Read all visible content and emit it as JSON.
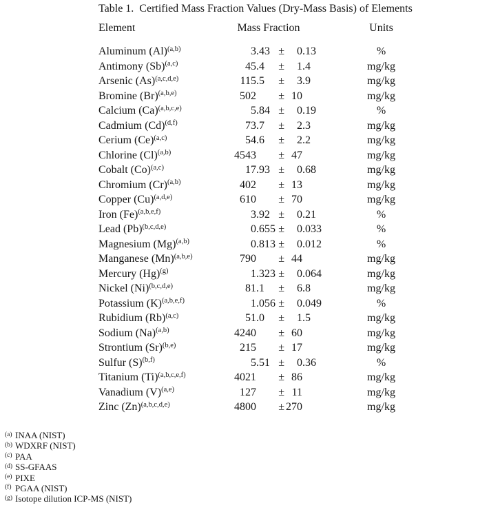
{
  "title": "Table 1.  Certified Mass Fraction Values (Dry-Mass Basis) of Elements",
  "table": {
    "header": {
      "element": "Element",
      "mass_fraction": "Mass Fraction",
      "units": "Units"
    },
    "plus_minus": "±",
    "rows": [
      {
        "element": "Aluminum (Al)",
        "footnote_marker": "(a,b)",
        "value": "3.43",
        "uncertainty": "0.13",
        "units": "%"
      },
      {
        "element": "Antimony (Sb)",
        "footnote_marker": "(a,c)",
        "value": "45.4",
        "uncertainty": "1.4",
        "units": "mg/kg"
      },
      {
        "element": "Arsenic (As)",
        "footnote_marker": "(a,c,d,e)",
        "value": "115.5",
        "uncertainty": "3.9",
        "units": "mg/kg"
      },
      {
        "element": "Bromine (Br)",
        "footnote_marker": "(a,b,e)",
        "value": "502",
        "uncertainty": "10",
        "units": "mg/kg"
      },
      {
        "element": "Calcium (Ca)",
        "footnote_marker": "(a,b,c,e)",
        "value": "5.84",
        "uncertainty": "0.19",
        "units": "%"
      },
      {
        "element": "Cadmium (Cd)",
        "footnote_marker": "(d,f)",
        "value": "73.7",
        "uncertainty": "2.3",
        "units": "mg/kg"
      },
      {
        "element": "Cerium (Ce)",
        "footnote_marker": "(a,c)",
        "value": "54.6",
        "uncertainty": "2.2",
        "units": "mg/kg"
      },
      {
        "element": "Chlorine (Cl)",
        "footnote_marker": "(a,b)",
        "value": "4543",
        "uncertainty": "47",
        "units": "mg/kg"
      },
      {
        "element": "Cobalt (Co)",
        "footnote_marker": "(a,c)",
        "value": "17.93",
        "uncertainty": "0.68",
        "units": "mg/kg"
      },
      {
        "element": "Chromium (Cr)",
        "footnote_marker": "(a,b)",
        "value": "402",
        "uncertainty": "13",
        "units": "mg/kg"
      },
      {
        "element": "Copper (Cu)",
        "footnote_marker": "(a,d,e)",
        "value": "610",
        "uncertainty": "70",
        "units": "mg/kg"
      },
      {
        "element": "Iron (Fe)",
        "footnote_marker": "(a,b,e,f)",
        "value": "3.92",
        "uncertainty": "0.21",
        "units": "%"
      },
      {
        "element": "Lead (Pb)",
        "footnote_marker": "(b,c,d,e)",
        "value": "0.655",
        "uncertainty": "0.033",
        "units": "%"
      },
      {
        "element": "Magnesium (Mg)",
        "footnote_marker": "(a,b)",
        "value": "0.813",
        "uncertainty": "0.012",
        "units": "%"
      },
      {
        "element": "Manganese (Mn)",
        "footnote_marker": "(a,b,e)",
        "value": "790",
        "uncertainty": "44",
        "units": "mg/kg"
      },
      {
        "element": "Mercury (Hg)",
        "footnote_marker": "(g)",
        "value": "1.323",
        "uncertainty": "0.064",
        "units": "mg/kg"
      },
      {
        "element": "Nickel (Ni)",
        "footnote_marker": "(b,c,d,e)",
        "value": "81.1",
        "uncertainty": "6.8",
        "units": "mg/kg"
      },
      {
        "element": "Potassium (K)",
        "footnote_marker": "(a,b,e,f)",
        "value": "1.056",
        "uncertainty": "0.049",
        "units": "%"
      },
      {
        "element": "Rubidium (Rb)",
        "footnote_marker": "(a,c)",
        "value": "51.0",
        "uncertainty": "1.5",
        "units": "mg/kg"
      },
      {
        "element": "Sodium (Na)",
        "footnote_marker": "(a,b)",
        "value": "4240",
        "uncertainty": "60",
        "units": "mg/kg"
      },
      {
        "element": "Strontium (Sr)",
        "footnote_marker": "(b,e)",
        "value": "215",
        "uncertainty": "17",
        "units": "mg/kg"
      },
      {
        "element": "Sulfur (S)",
        "footnote_marker": "(b,f)",
        "value": "5.51",
        "uncertainty": "0.36",
        "units": "%"
      },
      {
        "element": "Titanium (Ti)",
        "footnote_marker": "(a,b,c,e,f)",
        "value": "4021",
        "uncertainty": "86",
        "units": "mg/kg"
      },
      {
        "element": "Vanadium (V)",
        "footnote_marker": "(a,e)",
        "value": "127",
        "uncertainty": "11",
        "units": "mg/kg"
      },
      {
        "element": "Zinc (Zn)",
        "footnote_marker": "(a,b,c,d,e)",
        "value": "4800",
        "uncertainty": "270",
        "units": "mg/kg"
      }
    ]
  },
  "footnotes": [
    {
      "marker": "(a)",
      "text": "INAA (NIST)"
    },
    {
      "marker": "(b)",
      "text": "WDXRF (NIST)"
    },
    {
      "marker": "(c)",
      "text": "PAA"
    },
    {
      "marker": "(d)",
      "text": "SS-GFAAS"
    },
    {
      "marker": "(e)",
      "text": "PIXE"
    },
    {
      "marker": "(f)",
      "text": "PGAA (NIST)"
    },
    {
      "marker": "(g)",
      "text": "Isotope dilution ICP-MS (NIST)"
    }
  ]
}
